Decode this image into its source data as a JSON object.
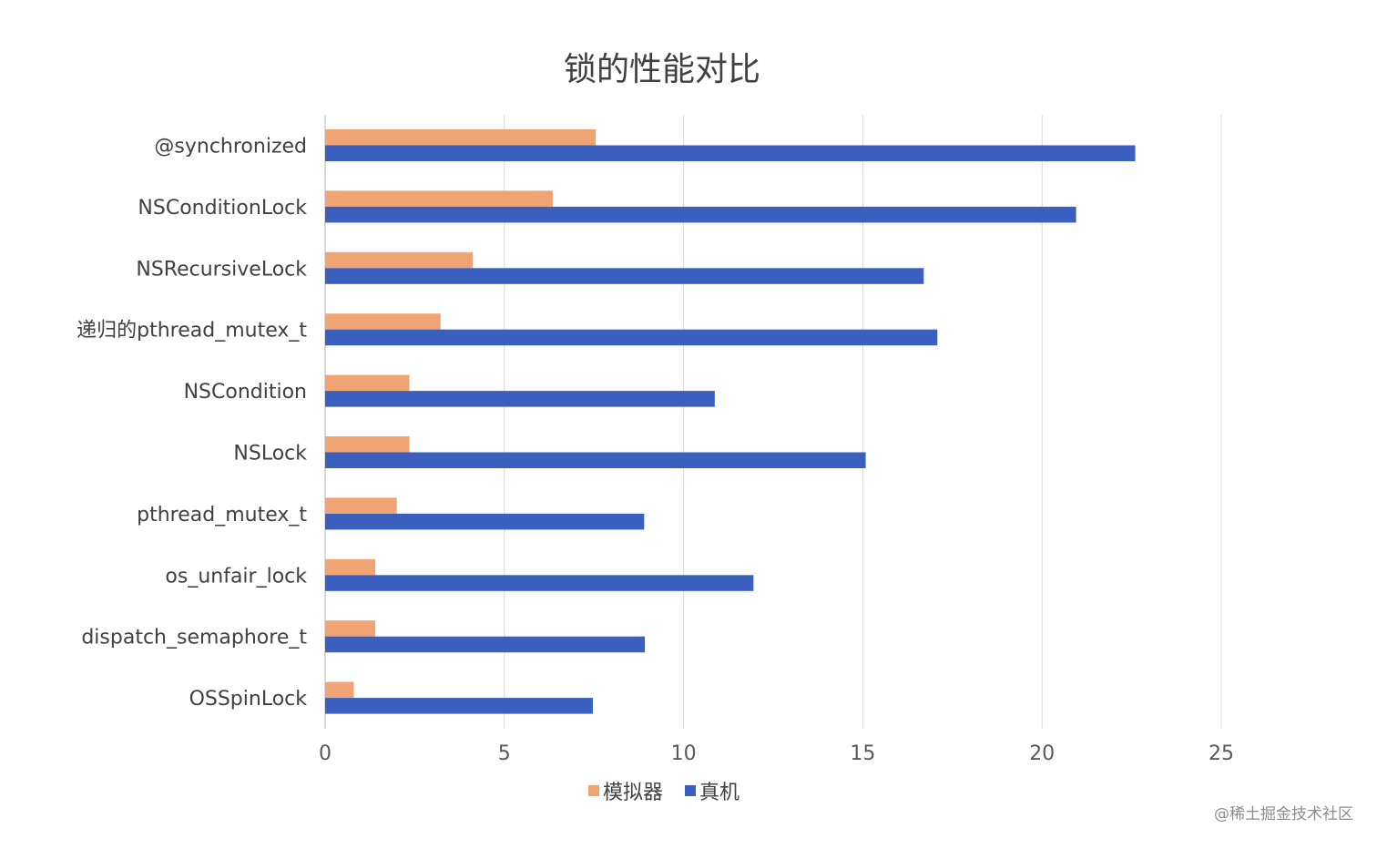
{
  "chart_data": {
    "type": "bar",
    "orientation": "horizontal",
    "title": "锁的性能对比",
    "categories": [
      "@synchronized",
      "NSConditionLock",
      "NSRecursiveLock",
      "递归的pthread_mutex_t",
      "NSCondition",
      "NSLock",
      "pthread_mutex_t",
      "os_unfair_lock",
      "dispatch_semaphore_t",
      "OSSpinLock"
    ],
    "series": [
      {
        "name": "模拟器",
        "color": "#F0A373",
        "values": [
          7.55,
          6.35,
          4.12,
          3.22,
          2.35,
          2.35,
          2.0,
          1.4,
          1.4,
          0.8
        ]
      },
      {
        "name": "真机",
        "color": "#3A5FBF",
        "values": [
          22.6,
          20.95,
          16.7,
          17.08,
          10.87,
          15.08,
          8.9,
          11.95,
          8.92,
          7.47
        ]
      }
    ],
    "xlim": [
      0,
      25
    ],
    "xticks": [
      "0",
      "5",
      "10",
      "15",
      "20",
      "25"
    ],
    "grid": true,
    "legend_position": "bottom"
  },
  "watermark": "@稀土掘金技术社区"
}
